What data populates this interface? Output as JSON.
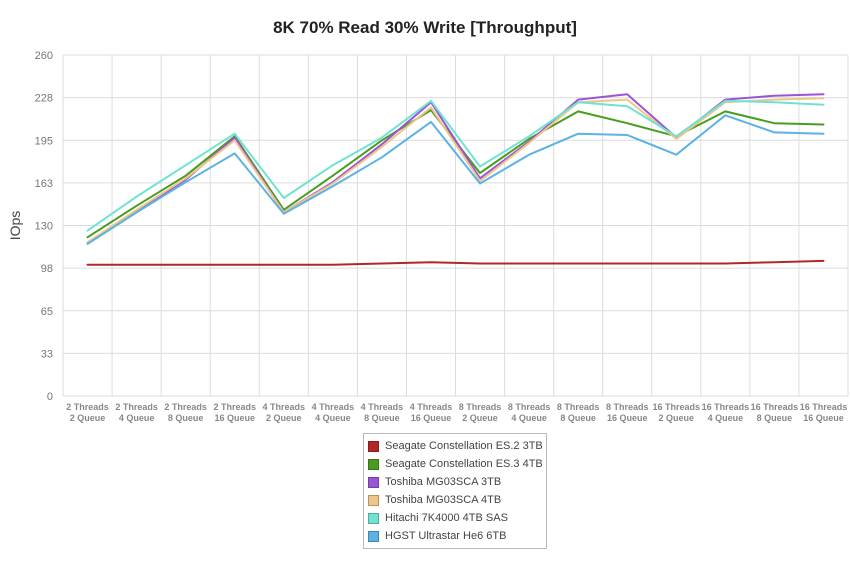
{
  "chart_data": {
    "type": "line",
    "title": "8K 70% Read 30% Write [Throughput]",
    "ylabel": "IOps",
    "xlabel": "",
    "ylim": [
      0,
      260
    ],
    "yticks": [
      "0",
      "33",
      "65",
      "98",
      "130",
      "163",
      "195",
      "228",
      "260"
    ],
    "grid": true,
    "legend_position": "bottom",
    "categories": [
      [
        "2 Threads",
        "2 Queue"
      ],
      [
        "2 Threads",
        "4 Queue"
      ],
      [
        "2 Threads",
        "8 Queue"
      ],
      [
        "2 Threads",
        "16 Queue"
      ],
      [
        "4 Threads",
        "2 Queue"
      ],
      [
        "4 Threads",
        "4 Queue"
      ],
      [
        "4 Threads",
        "8 Queue"
      ],
      [
        "4 Threads",
        "16 Queue"
      ],
      [
        "8 Threads",
        "2 Queue"
      ],
      [
        "8 Threads",
        "4 Queue"
      ],
      [
        "8 Threads",
        "8 Queue"
      ],
      [
        "8 Threads",
        "16 Queue"
      ],
      [
        "16 Threads",
        "2 Queue"
      ],
      [
        "16 Threads",
        "4 Queue"
      ],
      [
        "16 Threads",
        "8 Queue"
      ],
      [
        "16 Threads",
        "16 Queue"
      ]
    ],
    "series": [
      {
        "name": "Seagate Constellation ES.2 3TB",
        "color": "#b42727",
        "values": [
          100,
          100,
          100,
          100,
          100,
          100,
          101,
          102,
          101,
          101,
          101,
          101,
          101,
          101,
          102,
          103
        ]
      },
      {
        "name": "Seagate Constellation ES.3 4TB",
        "color": "#4a9c1f",
        "values": [
          121,
          145,
          168,
          198,
          142,
          168,
          195,
          218,
          170,
          196,
          217,
          208,
          198,
          217,
          208,
          207
        ]
      },
      {
        "name": "Toshiba MG03SCA 3TB",
        "color": "#9a55d6",
        "values": [
          117,
          141,
          165,
          197,
          140,
          163,
          192,
          224,
          166,
          194,
          226,
          230,
          197,
          226,
          229,
          230
        ]
      },
      {
        "name": "Toshiba MG03SCA 4TB",
        "color": "#efc58a",
        "values": [
          117,
          142,
          166,
          195,
          140,
          162,
          190,
          220,
          164,
          193,
          224,
          226,
          196,
          224,
          226,
          227
        ]
      },
      {
        "name": "Hitachi 7K4000 4TB SAS",
        "color": "#6fe3d1",
        "values": [
          126,
          152,
          176,
          200,
          151,
          176,
          197,
          225,
          175,
          198,
          224,
          221,
          198,
          225,
          224,
          222
        ]
      },
      {
        "name": "HGST Ultrastar He6 6TB",
        "color": "#5ab3e3",
        "values": [
          116,
          140,
          163,
          185,
          139,
          160,
          182,
          209,
          162,
          184,
          200,
          199,
          184,
          214,
          201,
          200
        ]
      }
    ]
  }
}
